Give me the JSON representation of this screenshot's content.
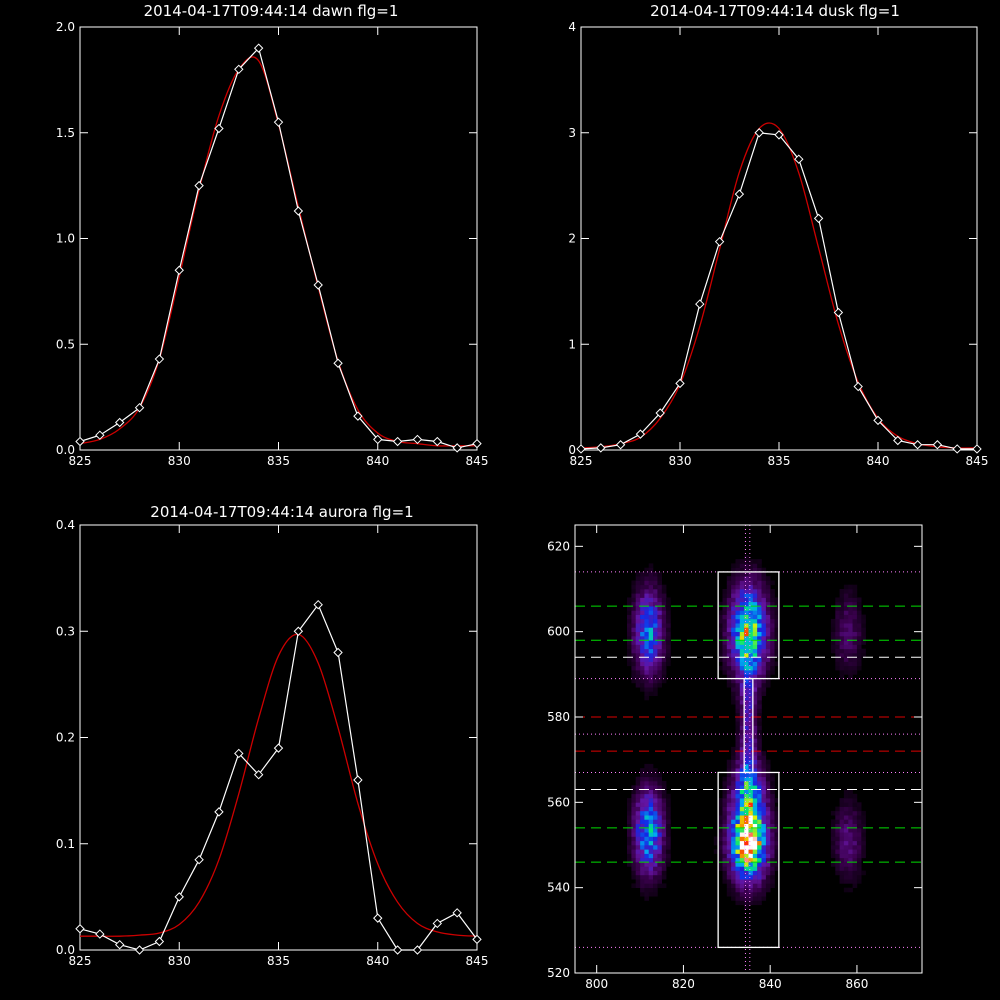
{
  "chart_data": [
    {
      "type": "line",
      "title": "2014-04-17T09:44:14 dawn flg=1",
      "xlim": [
        825,
        845
      ],
      "ylim": [
        0,
        2.0
      ],
      "xticks": [
        "825",
        "830",
        "835",
        "840",
        "845"
      ],
      "yticks": [
        "0.0",
        "0.5",
        "1.0",
        "1.5",
        "2.0"
      ],
      "series": [
        {
          "color": "#ffffff",
          "marker": "diamond",
          "x": [
            825,
            826,
            827,
            828,
            829,
            830,
            831,
            832,
            833,
            834,
            835,
            836,
            837,
            838,
            839,
            840,
            841,
            842,
            843,
            844,
            845
          ],
          "y": [
            0.04,
            0.07,
            0.13,
            0.2,
            0.43,
            0.85,
            1.25,
            1.52,
            1.8,
            1.9,
            1.55,
            1.13,
            0.78,
            0.41,
            0.16,
            0.05,
            0.04,
            0.05,
            0.04,
            0.01,
            0.03
          ]
        },
        {
          "color": "#cc0000",
          "marker": "none",
          "x": [
            825,
            826,
            827,
            828,
            829,
            830,
            831,
            832,
            833,
            834,
            835,
            836,
            837,
            838,
            839,
            840,
            841,
            842,
            843,
            844,
            845
          ],
          "y": [
            0.03,
            0.05,
            0.1,
            0.2,
            0.43,
            0.82,
            1.23,
            1.58,
            1.8,
            1.84,
            1.54,
            1.15,
            0.77,
            0.42,
            0.19,
            0.08,
            0.04,
            0.03,
            0.02,
            0.02,
            0.02
          ]
        }
      ]
    },
    {
      "type": "line",
      "title": "2014-04-17T09:44:14 dusk flg=1",
      "xlim": [
        825,
        845
      ],
      "ylim": [
        0,
        4
      ],
      "xticks": [
        "825",
        "830",
        "835",
        "840",
        "845"
      ],
      "yticks": [
        "0",
        "1",
        "2",
        "3",
        "4"
      ],
      "series": [
        {
          "color": "#ffffff",
          "marker": "diamond",
          "x": [
            825,
            826,
            827,
            828,
            829,
            830,
            831,
            832,
            833,
            834,
            835,
            836,
            837,
            838,
            839,
            840,
            841,
            842,
            843,
            844,
            845
          ],
          "y": [
            0.01,
            0.02,
            0.05,
            0.15,
            0.35,
            0.63,
            1.38,
            1.97,
            2.42,
            3.0,
            2.98,
            2.75,
            2.19,
            1.3,
            0.6,
            0.28,
            0.09,
            0.05,
            0.05,
            0.01,
            0.01
          ]
        },
        {
          "color": "#cc0000",
          "marker": "none",
          "x": [
            825,
            826,
            827,
            828,
            829,
            830,
            831,
            832,
            833,
            834,
            835,
            836,
            837,
            838,
            839,
            840,
            841,
            842,
            843,
            844,
            845
          ],
          "y": [
            0.02,
            0.03,
            0.06,
            0.12,
            0.3,
            0.62,
            1.17,
            1.9,
            2.63,
            3.04,
            3.04,
            2.62,
            1.91,
            1.19,
            0.64,
            0.3,
            0.13,
            0.06,
            0.03,
            0.02,
            0.02
          ]
        }
      ]
    },
    {
      "type": "line",
      "title": "2014-04-17T09:44:14 aurora flg=1",
      "xlim": [
        825,
        845
      ],
      "ylim": [
        0,
        0.4
      ],
      "xticks": [
        "825",
        "830",
        "835",
        "840",
        "845"
      ],
      "yticks": [
        "0.0",
        "0.1",
        "0.2",
        "0.3",
        "0.4"
      ],
      "series": [
        {
          "color": "#ffffff",
          "marker": "diamond",
          "x": [
            825,
            826,
            827,
            828,
            829,
            830,
            831,
            832,
            833,
            834,
            835,
            836,
            837,
            838,
            839,
            840,
            841,
            842,
            843,
            844,
            845
          ],
          "y": [
            0.02,
            0.015,
            0.005,
            0.0,
            0.008,
            0.05,
            0.085,
            0.13,
            0.185,
            0.165,
            0.19,
            0.3,
            0.325,
            0.28,
            0.16,
            0.03,
            0.0,
            0.0,
            0.025,
            0.035,
            0.01
          ]
        },
        {
          "color": "#cc0000",
          "marker": "none",
          "x": [
            825,
            826,
            827,
            828,
            829,
            830,
            831,
            832,
            833,
            834,
            835,
            836,
            837,
            838,
            839,
            840,
            841,
            842,
            843,
            844,
            845
          ],
          "y": [
            0.013,
            0.013,
            0.013,
            0.014,
            0.016,
            0.024,
            0.045,
            0.085,
            0.147,
            0.218,
            0.277,
            0.297,
            0.27,
            0.209,
            0.138,
            0.081,
            0.045,
            0.025,
            0.017,
            0.014,
            0.013
          ]
        }
      ]
    },
    {
      "type": "heatmap",
      "title": "",
      "xlim": [
        795,
        875
      ],
      "ylim": [
        520,
        625
      ],
      "xticks": [
        "800",
        "820",
        "840",
        "860"
      ],
      "yticks": [
        "520",
        "540",
        "560",
        "580",
        "600",
        "620"
      ],
      "blobs": [
        {
          "x": 812,
          "y": 600,
          "sx": 2.2,
          "sy": 6.5,
          "amp": 0.5
        },
        {
          "x": 812,
          "y": 553,
          "sx": 2.2,
          "sy": 6.5,
          "amp": 0.55
        },
        {
          "x": 835,
          "y": 600,
          "sx": 2.8,
          "sy": 7.0,
          "amp": 0.75
        },
        {
          "x": 835,
          "y": 551,
          "sx": 2.8,
          "sy": 6.0,
          "amp": 1.0
        },
        {
          "x": 835,
          "y": 563,
          "sx": 2.5,
          "sy": 5.0,
          "amp": 0.4
        },
        {
          "x": 858,
          "y": 600,
          "sx": 2.2,
          "sy": 6.0,
          "amp": 0.16
        },
        {
          "x": 858,
          "y": 551,
          "sx": 2.2,
          "sy": 6.0,
          "amp": 0.18
        },
        {
          "x": 835,
          "y": 577,
          "sx": 1.3,
          "sy": 12.0,
          "amp": 0.28
        }
      ],
      "boxes": [
        {
          "x0": 828,
          "x1": 842,
          "y0": 589,
          "y1": 614
        },
        {
          "x0": 828,
          "x1": 842,
          "y0": 526,
          "y1": 567
        },
        {
          "x0": 834,
          "x1": 836,
          "y0": 567,
          "y1": 589
        }
      ],
      "hlines": [
        {
          "y": 614,
          "color": "#ff80ff",
          "style": "dotted"
        },
        {
          "y": 606,
          "color": "#00dd00",
          "style": "dashed"
        },
        {
          "y": 598,
          "color": "#00dd00",
          "style": "dashed"
        },
        {
          "y": 594,
          "color": "#ffffff",
          "style": "dashed"
        },
        {
          "y": 589,
          "color": "#ff80ff",
          "style": "dotted"
        },
        {
          "y": 580,
          "color": "#dd0000",
          "style": "dashed"
        },
        {
          "y": 576,
          "color": "#ff80ff",
          "style": "dotted"
        },
        {
          "y": 572,
          "color": "#dd0000",
          "style": "dashed"
        },
        {
          "y": 567,
          "color": "#ff80ff",
          "style": "dotted"
        },
        {
          "y": 563,
          "color": "#ffffff",
          "style": "dashed"
        },
        {
          "y": 554,
          "color": "#00dd00",
          "style": "dashed"
        },
        {
          "y": 546,
          "color": "#00dd00",
          "style": "dashed"
        },
        {
          "y": 526,
          "color": "#ff80ff",
          "style": "dotted"
        }
      ],
      "vlines": [
        {
          "x": 834.3,
          "color": "#ff80ff",
          "style": "dotted"
        },
        {
          "x": 835.3,
          "color": "#ff80ff",
          "style": "dotted"
        }
      ]
    }
  ]
}
